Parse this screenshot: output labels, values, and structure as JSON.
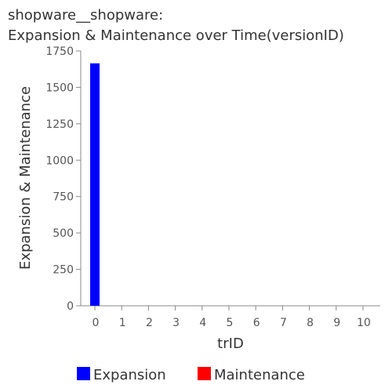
{
  "chart_data": {
    "type": "bar",
    "title_lines": [
      "shopware__shopware:",
      "Expansion & Maintenance over Time(versionID)"
    ],
    "xlabel": "trID",
    "ylabel": "Expansion & Maintenance",
    "categories": [
      "0",
      "1",
      "2",
      "3",
      "4",
      "5",
      "6",
      "7",
      "8",
      "9",
      "10"
    ],
    "ylim": [
      0,
      1750
    ],
    "yticks": [
      0,
      250,
      500,
      750,
      1000,
      1250,
      1500,
      1750
    ],
    "grid": false,
    "legend_position": "bottom",
    "series": [
      {
        "name": "Expansion",
        "color": "#0000ff",
        "values": [
          1665,
          0,
          0,
          0,
          0,
          0,
          0,
          0,
          0,
          0,
          0
        ]
      },
      {
        "name": "Maintenance",
        "color": "#ff0000",
        "values": [
          0,
          0,
          0,
          0,
          0,
          0,
          0,
          0,
          0,
          0,
          0
        ]
      }
    ]
  }
}
